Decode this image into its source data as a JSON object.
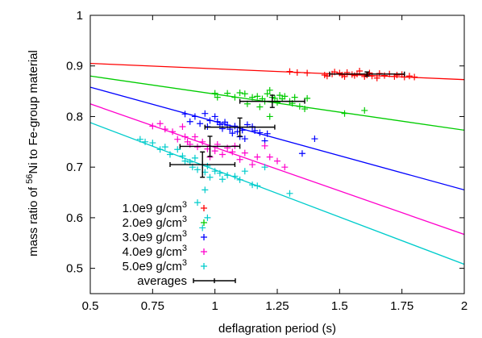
{
  "chart_data": {
    "type": "scatter",
    "xlabel": "deflagration period (s)",
    "ylabel": {
      "prefix": "mass ratio of ",
      "sup": "56",
      "suffix": "Ni to Fe-group material"
    },
    "xlim": [
      0.5,
      2.0
    ],
    "ylim": [
      0.45,
      1.0
    ],
    "xticks": [
      {
        "v": 0.5,
        "label": "0.5"
      },
      {
        "v": 0.75,
        "label": "0.75"
      },
      {
        "v": 1.0,
        "label": "1"
      },
      {
        "v": 1.25,
        "label": "1.25"
      },
      {
        "v": 1.5,
        "label": "1.5"
      },
      {
        "v": 1.75,
        "label": "1.75"
      },
      {
        "v": 2.0,
        "label": "2"
      }
    ],
    "yticks": [
      {
        "v": 0.5,
        "label": "0.5"
      },
      {
        "v": 0.6,
        "label": "0.6"
      },
      {
        "v": 0.7,
        "label": "0.7"
      },
      {
        "v": 0.8,
        "label": "0.8"
      },
      {
        "v": 0.9,
        "label": "0.9"
      },
      {
        "v": 1.0,
        "label": "1"
      }
    ],
    "grid": false,
    "legend_position": "bottom-left",
    "series": [
      {
        "name": "1.0e9 g/cm",
        "unit_sup": "3",
        "color": "#ff0000",
        "fit": [
          [
            0.5,
            0.905
          ],
          [
            2.0,
            0.873
          ]
        ],
        "points": [
          [
            1.3,
            0.889
          ],
          [
            1.33,
            0.887
          ],
          [
            1.37,
            0.886
          ],
          [
            1.44,
            0.882
          ],
          [
            1.45,
            0.88
          ],
          [
            1.47,
            0.884
          ],
          [
            1.48,
            0.888
          ],
          [
            1.5,
            0.886
          ],
          [
            1.51,
            0.882
          ],
          [
            1.52,
            0.879
          ],
          [
            1.53,
            0.887
          ],
          [
            1.55,
            0.883
          ],
          [
            1.56,
            0.881
          ],
          [
            1.57,
            0.884
          ],
          [
            1.58,
            0.89
          ],
          [
            1.6,
            0.879
          ],
          [
            1.61,
            0.882
          ],
          [
            1.62,
            0.886
          ],
          [
            1.63,
            0.88
          ],
          [
            1.65,
            0.876
          ],
          [
            1.66,
            0.885
          ],
          [
            1.68,
            0.881
          ],
          [
            1.7,
            0.884
          ],
          [
            1.72,
            0.879
          ],
          [
            1.73,
            0.882
          ],
          [
            1.75,
            0.883
          ],
          [
            1.76,
            0.878
          ],
          [
            1.78,
            0.88
          ],
          [
            1.8,
            0.878
          ]
        ]
      },
      {
        "name": "2.0e9 g/cm",
        "unit_sup": "3",
        "color": "#00cc00",
        "fit": [
          [
            0.5,
            0.88
          ],
          [
            2.0,
            0.773
          ]
        ],
        "points": [
          [
            1.0,
            0.846
          ],
          [
            1.01,
            0.838
          ],
          [
            1.05,
            0.846
          ],
          [
            1.08,
            0.838
          ],
          [
            1.1,
            0.847
          ],
          [
            1.12,
            0.845
          ],
          [
            1.13,
            0.825
          ],
          [
            1.15,
            0.838
          ],
          [
            1.17,
            0.84
          ],
          [
            1.18,
            0.819
          ],
          [
            1.19,
            0.835
          ],
          [
            1.2,
            0.83
          ],
          [
            1.21,
            0.845
          ],
          [
            1.22,
            0.852
          ],
          [
            1.23,
            0.838
          ],
          [
            1.24,
            0.836
          ],
          [
            1.25,
            0.828
          ],
          [
            1.26,
            0.842
          ],
          [
            1.27,
            0.835
          ],
          [
            1.28,
            0.84
          ],
          [
            1.3,
            0.83
          ],
          [
            1.31,
            0.826
          ],
          [
            1.32,
            0.838
          ],
          [
            1.34,
            0.82
          ],
          [
            1.36,
            0.815
          ],
          [
            1.37,
            0.836
          ],
          [
            1.52,
            0.806
          ],
          [
            1.6,
            0.812
          ],
          [
            1.22,
            0.8
          ]
        ]
      },
      {
        "name": "3.0e9 g/cm",
        "unit_sup": "3",
        "color": "#0000ff",
        "fit": [
          [
            0.5,
            0.858
          ],
          [
            2.0,
            0.655
          ]
        ],
        "points": [
          [
            0.88,
            0.805
          ],
          [
            0.9,
            0.79
          ],
          [
            0.92,
            0.8
          ],
          [
            0.94,
            0.786
          ],
          [
            0.96,
            0.806
          ],
          [
            0.97,
            0.78
          ],
          [
            0.98,
            0.792
          ],
          [
            1.0,
            0.8
          ],
          [
            1.01,
            0.79
          ],
          [
            1.02,
            0.784
          ],
          [
            1.03,
            0.776
          ],
          [
            1.04,
            0.789
          ],
          [
            1.05,
            0.783
          ],
          [
            1.06,
            0.775
          ],
          [
            1.07,
            0.767
          ],
          [
            1.08,
            0.781
          ],
          [
            1.09,
            0.77
          ],
          [
            1.1,
            0.76
          ],
          [
            1.11,
            0.773
          ],
          [
            1.12,
            0.756
          ],
          [
            1.13,
            0.784
          ],
          [
            1.15,
            0.78
          ],
          [
            1.16,
            0.772
          ],
          [
            1.18,
            0.768
          ],
          [
            1.2,
            0.752
          ],
          [
            1.21,
            0.766
          ],
          [
            1.35,
            0.727
          ],
          [
            1.4,
            0.756
          ]
        ]
      },
      {
        "name": "4.0e9 g/cm",
        "unit_sup": "3",
        "color": "#ff00cc",
        "fit": [
          [
            0.5,
            0.825
          ],
          [
            2.0,
            0.567
          ]
        ],
        "points": [
          [
            0.75,
            0.781
          ],
          [
            0.78,
            0.786
          ],
          [
            0.8,
            0.775
          ],
          [
            0.83,
            0.77
          ],
          [
            0.85,
            0.755
          ],
          [
            0.87,
            0.78
          ],
          [
            0.88,
            0.76
          ],
          [
            0.89,
            0.75
          ],
          [
            0.9,
            0.745
          ],
          [
            0.92,
            0.76
          ],
          [
            0.93,
            0.74
          ],
          [
            0.95,
            0.75
          ],
          [
            0.97,
            0.736
          ],
          [
            0.98,
            0.72
          ],
          [
            1.0,
            0.732
          ],
          [
            1.01,
            0.745
          ],
          [
            1.03,
            0.725
          ],
          [
            1.05,
            0.738
          ],
          [
            1.07,
            0.73
          ],
          [
            1.08,
            0.742
          ],
          [
            1.1,
            0.715
          ],
          [
            1.12,
            0.728
          ],
          [
            1.15,
            0.705
          ],
          [
            1.17,
            0.72
          ],
          [
            1.2,
            0.742
          ],
          [
            1.22,
            0.72
          ],
          [
            1.25,
            0.712
          ],
          [
            1.28,
            0.7
          ]
        ]
      },
      {
        "name": "5.0e9 g/cm",
        "unit_sup": "3",
        "color": "#00cccc",
        "fit": [
          [
            0.5,
            0.788
          ],
          [
            2.0,
            0.508
          ]
        ],
        "points": [
          [
            0.7,
            0.755
          ],
          [
            0.72,
            0.75
          ],
          [
            0.75,
            0.748
          ],
          [
            0.78,
            0.735
          ],
          [
            0.8,
            0.74
          ],
          [
            0.82,
            0.725
          ],
          [
            0.85,
            0.735
          ],
          [
            0.87,
            0.722
          ],
          [
            0.88,
            0.712
          ],
          [
            0.9,
            0.71
          ],
          [
            0.91,
            0.7
          ],
          [
            0.92,
            0.718
          ],
          [
            0.93,
            0.695
          ],
          [
            0.95,
            0.705
          ],
          [
            0.96,
            0.69
          ],
          [
            0.97,
            0.702
          ],
          [
            0.98,
            0.68
          ],
          [
            1.0,
            0.692
          ],
          [
            1.02,
            0.688
          ],
          [
            1.03,
            0.676
          ],
          [
            1.05,
            0.684
          ],
          [
            1.08,
            0.682
          ],
          [
            1.1,
            0.675
          ],
          [
            1.12,
            0.692
          ],
          [
            1.15,
            0.665
          ],
          [
            1.17,
            0.663
          ],
          [
            1.3,
            0.648
          ],
          [
            0.96,
            0.655
          ],
          [
            0.97,
            0.6
          ],
          [
            0.95,
            0.58
          ],
          [
            0.93,
            0.63
          ],
          [
            1.2,
            0.7
          ]
        ]
      }
    ],
    "averages": {
      "name": "averages",
      "color": "#000000",
      "points": [
        {
          "x": 1.61,
          "y": 0.884,
          "xerr": 0.15,
          "yerr": 0.004
        },
        {
          "x": 1.23,
          "y": 0.83,
          "xerr": 0.13,
          "yerr": 0.012
        },
        {
          "x": 1.1,
          "y": 0.779,
          "xerr": 0.14,
          "yerr": 0.018
        },
        {
          "x": 0.98,
          "y": 0.741,
          "xerr": 0.12,
          "yerr": 0.02
        },
        {
          "x": 0.95,
          "y": 0.705,
          "xerr": 0.13,
          "yerr": 0.025
        }
      ]
    }
  }
}
